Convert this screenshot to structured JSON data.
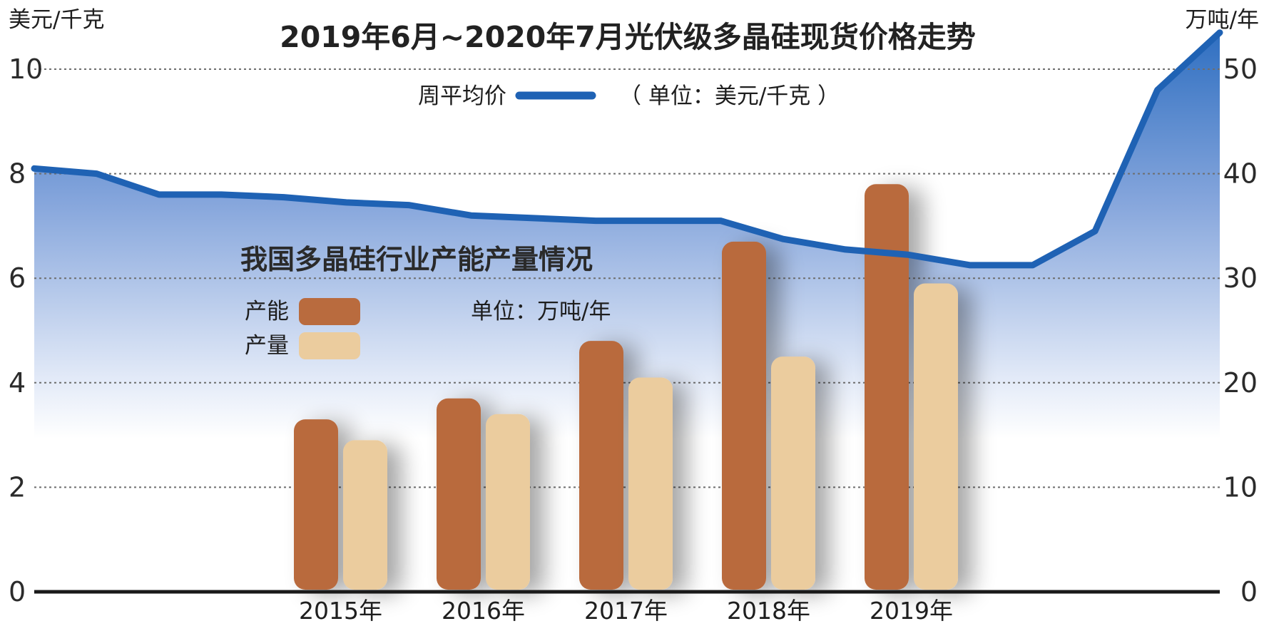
{
  "chart_data": [
    {
      "type": "area",
      "title": "2019年6月~2020年7月光伏级多晶硅现货价格走势",
      "ylabel": "美元/千克",
      "ylim": [
        0,
        10
      ],
      "yticks": [
        0,
        2,
        4,
        6,
        8,
        10
      ],
      "grid": true,
      "legend_placement": "top-center",
      "unit_note": "（ 单位：美元/千克 ）",
      "series": [
        {
          "name": "周平均价",
          "color": "#1f62b4",
          "values": [
            8.1,
            8.0,
            7.6,
            7.6,
            7.55,
            7.45,
            7.4,
            7.2,
            7.15,
            7.1,
            7.1,
            7.1,
            6.75,
            6.55,
            6.45,
            6.25,
            6.25,
            6.9,
            9.6,
            10.7
          ]
        }
      ]
    },
    {
      "type": "bar",
      "title": "我国多晶硅行业产能产量情况",
      "unit_note": "单位：万吨/年",
      "ylabel": "万吨/年",
      "ylim": [
        0,
        50
      ],
      "yticks": [
        0,
        10,
        20,
        30,
        40,
        50
      ],
      "categories": [
        "2015年",
        "2016年",
        "2017年",
        "2018年",
        "2019年"
      ],
      "legend_placement": "top-left",
      "series": [
        {
          "name": "产能",
          "color": "#b96b3e",
          "values": [
            16.5,
            18.5,
            24,
            33.5,
            39
          ]
        },
        {
          "name": "产量",
          "color": "#ebcc9e",
          "values": [
            14.5,
            17,
            20.5,
            22.5,
            29.5
          ]
        }
      ]
    }
  ]
}
